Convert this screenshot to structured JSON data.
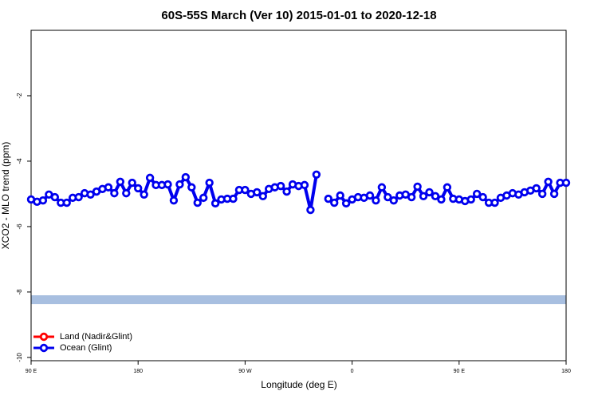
{
  "chart_data": {
    "type": "line",
    "title": "60S-55S March (Ver 10)   2015-01-01 to 2020-12-18",
    "x_label": "Longitude (deg E)",
    "y_label": "XCO2 - MLO trend (ppm)",
    "xlim": [
      90,
      540
    ],
    "xticks": [
      {
        "value": 90,
        "label": "90 E"
      },
      {
        "value": 180,
        "label": "180"
      },
      {
        "value": 270,
        "label": "90 W"
      },
      {
        "value": 360,
        "label": "0"
      },
      {
        "value": 450,
        "label": "90 E"
      },
      {
        "value": 540,
        "label": "180"
      }
    ],
    "ylim": [
      -10.1,
      0
    ],
    "yticks": [
      -10,
      -8,
      -6,
      -4,
      -2
    ],
    "band": {
      "color": "#a8bfe0",
      "range": [
        -8.37,
        -8.1
      ]
    },
    "legend": [
      {
        "name": "Land (Nadir&Glint)",
        "color": "#ff0000"
      },
      {
        "name": "Ocean (Glint)",
        "color": "#0000ee"
      }
    ],
    "x": [
      90,
      95,
      100,
      105,
      110,
      115,
      120,
      125,
      130,
      135,
      140,
      145,
      150,
      155,
      160,
      165,
      170,
      175,
      180,
      185,
      190,
      195,
      200,
      205,
      210,
      215,
      220,
      225,
      230,
      235,
      240,
      245,
      250,
      255,
      260,
      265,
      270,
      275,
      280,
      285,
      290,
      295,
      300,
      305,
      310,
      315,
      320,
      325,
      330,
      335,
      340,
      345,
      350,
      355,
      360,
      365,
      370,
      375,
      380,
      385,
      390,
      395,
      400,
      405,
      410,
      415,
      420,
      425,
      430,
      435,
      440,
      445,
      450,
      455,
      460,
      465,
      470,
      475,
      480,
      485,
      490,
      495,
      500,
      505,
      510,
      515,
      520,
      525,
      530,
      535,
      540
    ],
    "series": [
      {
        "name": "Ocean (Glint)",
        "color": "#0000ee",
        "values": [
          -5.17,
          -5.24,
          -5.2,
          -5.02,
          -5.1,
          -5.27,
          -5.27,
          -5.12,
          -5.1,
          -4.98,
          -5.02,
          -4.93,
          -4.85,
          -4.8,
          -4.98,
          -4.63,
          -4.98,
          -4.66,
          -4.83,
          -5.02,
          -4.51,
          -4.73,
          -4.73,
          -4.71,
          -5.2,
          -4.71,
          -4.49,
          -4.8,
          -5.27,
          -5.12,
          -4.66,
          -5.29,
          -5.17,
          -5.15,
          -5.15,
          -4.88,
          -4.88,
          -5.0,
          -4.95,
          -5.07,
          -4.85,
          -4.8,
          -4.76,
          -4.93,
          -4.71,
          -4.76,
          -4.73,
          -5.49,
          -4.41,
          null,
          -5.15,
          -5.27,
          -5.05,
          -5.29,
          -5.17,
          -5.1,
          -5.12,
          -5.05,
          -5.2,
          -4.8,
          -5.1,
          -5.2,
          -5.05,
          -5.02,
          -5.1,
          -4.78,
          -5.07,
          -4.95,
          -5.07,
          -5.17,
          -4.8,
          -5.15,
          -5.17,
          -5.22,
          -5.17,
          -5.0,
          -5.1,
          -5.27,
          -5.27,
          -5.12,
          -5.05,
          -4.98,
          -5.02,
          -4.95,
          -4.9,
          -4.83,
          -5.0,
          -4.63,
          -5.0,
          -4.66,
          -4.66
        ]
      }
    ]
  }
}
